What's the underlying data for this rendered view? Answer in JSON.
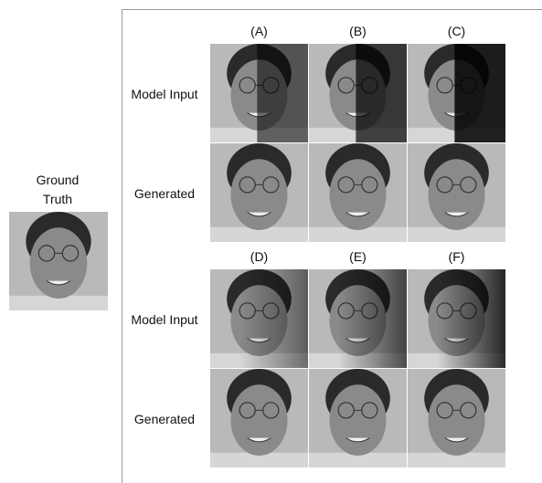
{
  "ground_truth": {
    "label": "Ground Truth"
  },
  "panels": [
    {
      "columns": [
        "(A)",
        "(B)",
        "(C)"
      ],
      "rows": [
        "Model Input",
        "Generated"
      ]
    },
    {
      "columns": [
        "(D)",
        "(E)",
        "(F)"
      ],
      "rows": [
        "Model Input",
        "Generated"
      ]
    }
  ]
}
